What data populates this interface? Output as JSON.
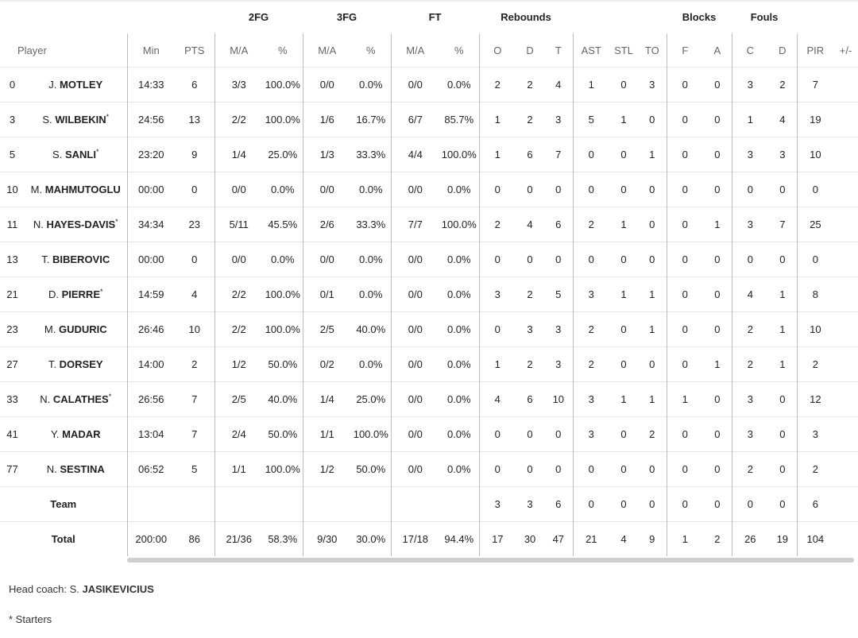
{
  "groups": [
    "2FG",
    "3FG",
    "FT",
    "Rebounds",
    "Blocks",
    "Fouls"
  ],
  "columns": {
    "player": "Player",
    "min": "Min",
    "pts": "PTS",
    "fg2_ma": "M/A",
    "fg2_pct": "%",
    "fg3_ma": "M/A",
    "fg3_pct": "%",
    "ft_ma": "M/A",
    "ft_pct": "%",
    "reb_o": "O",
    "reb_d": "D",
    "reb_t": "T",
    "ast": "AST",
    "stl": "STL",
    "to": "TO",
    "blk_f": "F",
    "blk_a": "A",
    "foul_c": "C",
    "foul_d": "D",
    "pir": "PIR",
    "pm": "+/-"
  },
  "players": [
    {
      "num": "0",
      "first": "J.",
      "last": "MOTLEY",
      "star": "",
      "min": "14:33",
      "pts": "6",
      "fg2_ma": "3/3",
      "fg2_pct": "100.0%",
      "fg3_ma": "0/0",
      "fg3_pct": "0.0%",
      "ft_ma": "0/0",
      "ft_pct": "0.0%",
      "reb_o": "2",
      "reb_d": "2",
      "reb_t": "4",
      "ast": "1",
      "stl": "0",
      "to": "3",
      "blk_f": "0",
      "blk_a": "0",
      "foul_c": "3",
      "foul_d": "2",
      "pir": "7",
      "pm": ""
    },
    {
      "num": "3",
      "first": "S.",
      "last": "WILBEKIN",
      "star": "*",
      "min": "24:56",
      "pts": "13",
      "fg2_ma": "2/2",
      "fg2_pct": "100.0%",
      "fg3_ma": "1/6",
      "fg3_pct": "16.7%",
      "ft_ma": "6/7",
      "ft_pct": "85.7%",
      "reb_o": "1",
      "reb_d": "2",
      "reb_t": "3",
      "ast": "5",
      "stl": "1",
      "to": "0",
      "blk_f": "0",
      "blk_a": "0",
      "foul_c": "1",
      "foul_d": "4",
      "pir": "19",
      "pm": ""
    },
    {
      "num": "5",
      "first": "S.",
      "last": "SANLI",
      "star": "*",
      "min": "23:20",
      "pts": "9",
      "fg2_ma": "1/4",
      "fg2_pct": "25.0%",
      "fg3_ma": "1/3",
      "fg3_pct": "33.3%",
      "ft_ma": "4/4",
      "ft_pct": "100.0%",
      "reb_o": "1",
      "reb_d": "6",
      "reb_t": "7",
      "ast": "0",
      "stl": "0",
      "to": "1",
      "blk_f": "0",
      "blk_a": "0",
      "foul_c": "3",
      "foul_d": "3",
      "pir": "10",
      "pm": ""
    },
    {
      "num": "10",
      "first": "M.",
      "last": "MAHMUTOGLU",
      "star": "",
      "min": "00:00",
      "pts": "0",
      "fg2_ma": "0/0",
      "fg2_pct": "0.0%",
      "fg3_ma": "0/0",
      "fg3_pct": "0.0%",
      "ft_ma": "0/0",
      "ft_pct": "0.0%",
      "reb_o": "0",
      "reb_d": "0",
      "reb_t": "0",
      "ast": "0",
      "stl": "0",
      "to": "0",
      "blk_f": "0",
      "blk_a": "0",
      "foul_c": "0",
      "foul_d": "0",
      "pir": "0",
      "pm": ""
    },
    {
      "num": "11",
      "first": "N.",
      "last": "HAYES-DAVIS",
      "star": "*",
      "min": "34:34",
      "pts": "23",
      "fg2_ma": "5/11",
      "fg2_pct": "45.5%",
      "fg3_ma": "2/6",
      "fg3_pct": "33.3%",
      "ft_ma": "7/7",
      "ft_pct": "100.0%",
      "reb_o": "2",
      "reb_d": "4",
      "reb_t": "6",
      "ast": "2",
      "stl": "1",
      "to": "0",
      "blk_f": "0",
      "blk_a": "1",
      "foul_c": "3",
      "foul_d": "7",
      "pir": "25",
      "pm": ""
    },
    {
      "num": "13",
      "first": "T.",
      "last": "BIBEROVIC",
      "star": "",
      "min": "00:00",
      "pts": "0",
      "fg2_ma": "0/0",
      "fg2_pct": "0.0%",
      "fg3_ma": "0/0",
      "fg3_pct": "0.0%",
      "ft_ma": "0/0",
      "ft_pct": "0.0%",
      "reb_o": "0",
      "reb_d": "0",
      "reb_t": "0",
      "ast": "0",
      "stl": "0",
      "to": "0",
      "blk_f": "0",
      "blk_a": "0",
      "foul_c": "0",
      "foul_d": "0",
      "pir": "0",
      "pm": ""
    },
    {
      "num": "21",
      "first": "D.",
      "last": "PIERRE",
      "star": "*",
      "min": "14:59",
      "pts": "4",
      "fg2_ma": "2/2",
      "fg2_pct": "100.0%",
      "fg3_ma": "0/1",
      "fg3_pct": "0.0%",
      "ft_ma": "0/0",
      "ft_pct": "0.0%",
      "reb_o": "3",
      "reb_d": "2",
      "reb_t": "5",
      "ast": "3",
      "stl": "1",
      "to": "1",
      "blk_f": "0",
      "blk_a": "0",
      "foul_c": "4",
      "foul_d": "1",
      "pir": "8",
      "pm": ""
    },
    {
      "num": "23",
      "first": "M.",
      "last": "GUDURIC",
      "star": "",
      "min": "26:46",
      "pts": "10",
      "fg2_ma": "2/2",
      "fg2_pct": "100.0%",
      "fg3_ma": "2/5",
      "fg3_pct": "40.0%",
      "ft_ma": "0/0",
      "ft_pct": "0.0%",
      "reb_o": "0",
      "reb_d": "3",
      "reb_t": "3",
      "ast": "2",
      "stl": "0",
      "to": "1",
      "blk_f": "0",
      "blk_a": "0",
      "foul_c": "2",
      "foul_d": "1",
      "pir": "10",
      "pm": ""
    },
    {
      "num": "27",
      "first": "T.",
      "last": "DORSEY",
      "star": "",
      "min": "14:00",
      "pts": "2",
      "fg2_ma": "1/2",
      "fg2_pct": "50.0%",
      "fg3_ma": "0/2",
      "fg3_pct": "0.0%",
      "ft_ma": "0/0",
      "ft_pct": "0.0%",
      "reb_o": "1",
      "reb_d": "2",
      "reb_t": "3",
      "ast": "2",
      "stl": "0",
      "to": "0",
      "blk_f": "0",
      "blk_a": "1",
      "foul_c": "2",
      "foul_d": "1",
      "pir": "2",
      "pm": ""
    },
    {
      "num": "33",
      "first": "N.",
      "last": "CALATHES",
      "star": "*",
      "min": "26:56",
      "pts": "7",
      "fg2_ma": "2/5",
      "fg2_pct": "40.0%",
      "fg3_ma": "1/4",
      "fg3_pct": "25.0%",
      "ft_ma": "0/0",
      "ft_pct": "0.0%",
      "reb_o": "4",
      "reb_d": "6",
      "reb_t": "10",
      "ast": "3",
      "stl": "1",
      "to": "1",
      "blk_f": "1",
      "blk_a": "0",
      "foul_c": "3",
      "foul_d": "0",
      "pir": "12",
      "pm": ""
    },
    {
      "num": "41",
      "first": "Y.",
      "last": "MADAR",
      "star": "",
      "min": "13:04",
      "pts": "7",
      "fg2_ma": "2/4",
      "fg2_pct": "50.0%",
      "fg3_ma": "1/1",
      "fg3_pct": "100.0%",
      "ft_ma": "0/0",
      "ft_pct": "0.0%",
      "reb_o": "0",
      "reb_d": "0",
      "reb_t": "0",
      "ast": "3",
      "stl": "0",
      "to": "2",
      "blk_f": "0",
      "blk_a": "0",
      "foul_c": "3",
      "foul_d": "0",
      "pir": "3",
      "pm": ""
    },
    {
      "num": "77",
      "first": "N.",
      "last": "SESTINA",
      "star": "",
      "min": "06:52",
      "pts": "5",
      "fg2_ma": "1/1",
      "fg2_pct": "100.0%",
      "fg3_ma": "1/2",
      "fg3_pct": "50.0%",
      "ft_ma": "0/0",
      "ft_pct": "0.0%",
      "reb_o": "0",
      "reb_d": "0",
      "reb_t": "0",
      "ast": "0",
      "stl": "0",
      "to": "0",
      "blk_f": "0",
      "blk_a": "0",
      "foul_c": "2",
      "foul_d": "0",
      "pir": "2",
      "pm": ""
    }
  ],
  "team": {
    "label": "Team",
    "min": "",
    "pts": "",
    "fg2_ma": "",
    "fg2_pct": "",
    "fg3_ma": "",
    "fg3_pct": "",
    "ft_ma": "",
    "ft_pct": "",
    "reb_o": "3",
    "reb_d": "3",
    "reb_t": "6",
    "ast": "0",
    "stl": "0",
    "to": "0",
    "blk_f": "0",
    "blk_a": "0",
    "foul_c": "0",
    "foul_d": "0",
    "pir": "6",
    "pm": ""
  },
  "total": {
    "label": "Total",
    "min": "200:00",
    "pts": "86",
    "fg2_ma": "21/36",
    "fg2_pct": "58.3%",
    "fg3_ma": "9/30",
    "fg3_pct": "30.0%",
    "ft_ma": "17/18",
    "ft_pct": "94.4%",
    "reb_o": "17",
    "reb_d": "30",
    "reb_t": "47",
    "ast": "21",
    "stl": "4",
    "to": "9",
    "blk_f": "1",
    "blk_a": "2",
    "foul_c": "26",
    "foul_d": "19",
    "pir": "104",
    "pm": ""
  },
  "footer": {
    "coach_prefix": "Head coach: S.",
    "coach_last": "JASIKEVICIUS",
    "starters_note": "* Starters"
  }
}
